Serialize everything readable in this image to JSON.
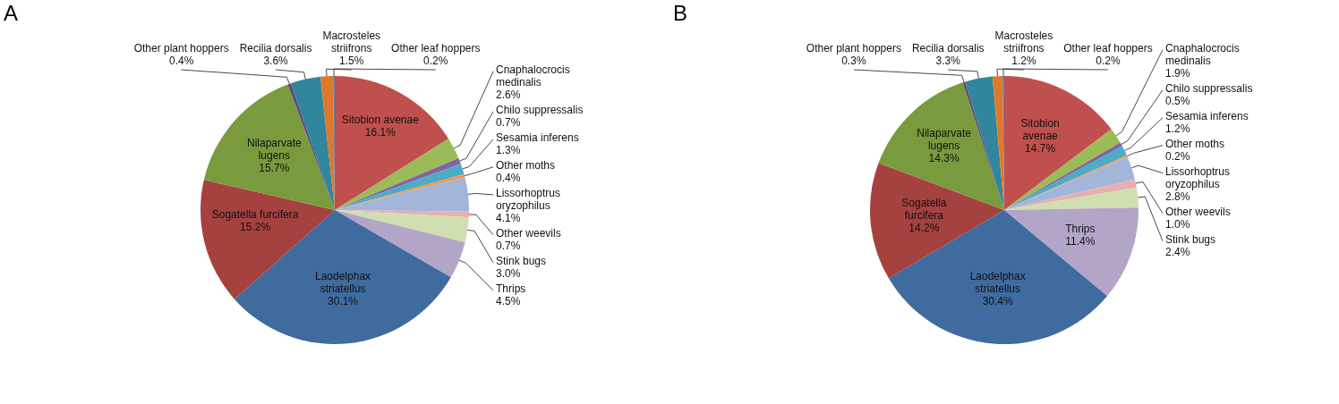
{
  "chart_data": [
    {
      "type": "pie",
      "title": "A",
      "categories": [
        "Sitobion avenae",
        "Cnaphalocrocis medinalis",
        "Chilo suppressalis",
        "Sesamia inferens",
        "Other moths",
        "Lissorhoptrus oryzophilus",
        "Other weevils",
        "Stink bugs",
        "Thrips",
        "Laodelphax striatellus",
        "Sogatella furcifera",
        "Nilaparvate lugens",
        "Other plant hoppers",
        "Recilia dorsalis",
        "Macrosteles striifrons",
        "Other leaf hoppers"
      ],
      "values": [
        16.1,
        2.6,
        0.7,
        1.3,
        0.4,
        4.1,
        0.7,
        3.0,
        4.5,
        30.1,
        15.2,
        15.7,
        0.4,
        3.6,
        1.5,
        0.2
      ],
      "value_labels": [
        "16.1%",
        "2.6%",
        "0.7%",
        "1.3%",
        "0.4%",
        "4.1%",
        "0.7%",
        "3.0%",
        "4.5%",
        "30.1%",
        "15.2%",
        "15.7%",
        "0.4%",
        "3.6%",
        "1.5%",
        "0.2%"
      ],
      "colors": [
        "#c0504d",
        "#9bbb59",
        "#8064a2",
        "#4bacc6",
        "#f79646",
        "#a2b6da",
        "#e6b0b0",
        "#cfdfb0",
        "#b3a5c8",
        "#3f6b9f",
        "#a5413f",
        "#7a9a3e",
        "#604a7b",
        "#31859c",
        "#e0782a",
        "#5b83b8"
      ]
    },
    {
      "type": "pie",
      "title": "B",
      "categories": [
        "Sitobion avenae",
        "Cnaphalocrocis medinalis",
        "Chilo suppressalis",
        "Sesamia inferens",
        "Other moths",
        "Lissorhoptrus oryzophilus",
        "Other weevils",
        "Stink bugs",
        "Thrips",
        "Laodelphax striatellus",
        "Sogatella furcifera",
        "Nilaparvate lugens",
        "Other plant hoppers",
        "Recilia dorsalis",
        "Macrosteles striifrons",
        "Other leaf hoppers"
      ],
      "values": [
        14.7,
        1.9,
        0.5,
        1.2,
        0.2,
        2.8,
        1.0,
        2.4,
        11.4,
        30.4,
        14.2,
        14.3,
        0.3,
        3.3,
        1.2,
        0.2
      ],
      "value_labels": [
        "14.7%",
        "1.9%",
        "0.5%",
        "1.2%",
        "0.2%",
        "2.8%",
        "1.0%",
        "2.4%",
        "11.4%",
        "30.4%",
        "14.2%",
        "14.3%",
        "0.3%",
        "3.3%",
        "1.2%",
        "0.2%"
      ],
      "colors": [
        "#c0504d",
        "#9bbb59",
        "#8064a2",
        "#4bacc6",
        "#f79646",
        "#a2b6da",
        "#e6b0b0",
        "#cfdfb0",
        "#b3a5c8",
        "#3f6b9f",
        "#a5413f",
        "#7a9a3e",
        "#604a7b",
        "#31859c",
        "#e0782a",
        "#5b83b8"
      ]
    }
  ]
}
